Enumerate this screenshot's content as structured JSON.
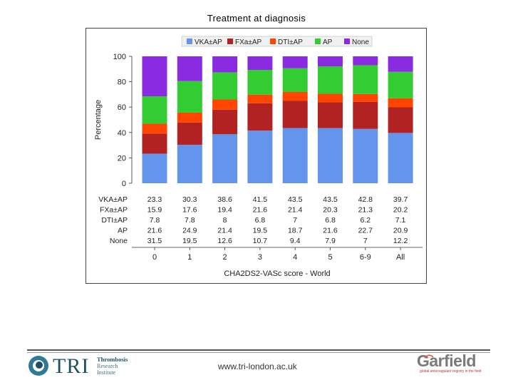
{
  "page": {
    "title": "Treatment at diagnosis",
    "footer_url": "www.tri-london.ac.uk"
  },
  "logos": {
    "tri": {
      "wordmark": "TRI",
      "line1": "Thrombosis",
      "line2": "Research",
      "line3": "Institute"
    },
    "garfield": {
      "wordmark": "Garfield",
      "tagline": "global anticoagulant registry in the field"
    }
  },
  "chart_data": {
    "type": "bar",
    "stacked": true,
    "title": "Treatment at diagnosis",
    "xlabel": "CHA2DS2-VASc score - World",
    "ylabel": "Percentage",
    "ylim": [
      0,
      100
    ],
    "yticks": [
      "0",
      "20",
      "40",
      "60",
      "80",
      "100"
    ],
    "categories": [
      "0",
      "1",
      "2",
      "3",
      "4",
      "5",
      "6-9",
      "All"
    ],
    "legend_position": "top",
    "series": [
      {
        "name": "VKA±AP",
        "color": "#6495ed",
        "values": [
          23.3,
          30.3,
          38.6,
          41.5,
          43.5,
          43.5,
          42.8,
          39.7
        ],
        "labels": [
          "23.3",
          "30.3",
          "38.6",
          "41.5",
          "43.5",
          "43.5",
          "42.8",
          "39.7"
        ]
      },
      {
        "name": "FXa±AP",
        "color": "#b22222",
        "values": [
          15.9,
          17.6,
          19.4,
          21.6,
          21.4,
          20.3,
          21.3,
          20.2
        ],
        "labels": [
          "15.9",
          "17.6",
          "19.4",
          "21.6",
          "21.4",
          "20.3",
          "21.3",
          "20.2"
        ]
      },
      {
        "name": "DTI±AP",
        "color": "#ff4500",
        "values": [
          7.8,
          7.8,
          8,
          6.8,
          7,
          6.8,
          6.2,
          7.1
        ],
        "labels": [
          "7.8",
          "7.8",
          "8",
          "6.8",
          "7",
          "6.8",
          "6.2",
          "7.1"
        ]
      },
      {
        "name": "AP",
        "color": "#33cc33",
        "values": [
          21.6,
          24.9,
          21.4,
          19.5,
          18.7,
          21.6,
          22.7,
          20.9
        ],
        "labels": [
          "21.6",
          "24.9",
          "21.4",
          "19.5",
          "18.7",
          "21.6",
          "22.7",
          "20.9"
        ]
      },
      {
        "name": "None",
        "color": "#8a2be2",
        "values": [
          31.5,
          19.5,
          12.6,
          10.7,
          9.4,
          7.9,
          7,
          12.2
        ],
        "labels": [
          "31.5",
          "19.5",
          "12.6",
          "10.7",
          "9.4",
          "7.9",
          "7",
          "12.2"
        ]
      }
    ]
  }
}
